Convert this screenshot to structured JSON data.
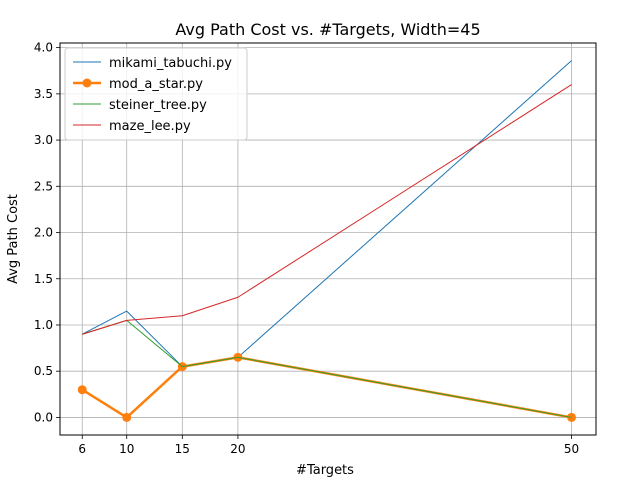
{
  "chart_data": {
    "type": "line",
    "title": "Avg Path Cost vs. #Targets, Width=45",
    "xlabel": "#Targets",
    "ylabel": "Avg Path Cost",
    "x": [
      6,
      10,
      15,
      20,
      50
    ],
    "xticks": [
      "6",
      "10",
      "15",
      "20",
      "50"
    ],
    "xlim": [
      4,
      52.2
    ],
    "ylim": [
      -0.19,
      4.05
    ],
    "yticks": [
      "0.0",
      "0.5",
      "1.0",
      "1.5",
      "2.0",
      "2.5",
      "3.0",
      "3.5",
      "4.0"
    ],
    "grid": true,
    "legend_position": "top-left",
    "series": [
      {
        "name": "mikami_tabuchi.py",
        "values": [
          0.9,
          1.15,
          0.55,
          0.65,
          3.86
        ],
        "color": "#1f77b4",
        "width": 1,
        "marker": false
      },
      {
        "name": "mod_a_star.py",
        "values": [
          0.3,
          0.0,
          0.55,
          0.65,
          0.0
        ],
        "color": "#ff7f0e",
        "width": 2.5,
        "marker": true
      },
      {
        "name": "steiner_tree.py",
        "values": [
          0.9,
          1.05,
          0.55,
          0.65,
          0.0
        ],
        "color": "#2ca02c",
        "width": 1,
        "marker": false
      },
      {
        "name": "maze_lee.py",
        "values": [
          0.9,
          1.05,
          1.1,
          1.3,
          3.6
        ],
        "color": "#d62728",
        "width": 1,
        "marker": false
      }
    ]
  }
}
